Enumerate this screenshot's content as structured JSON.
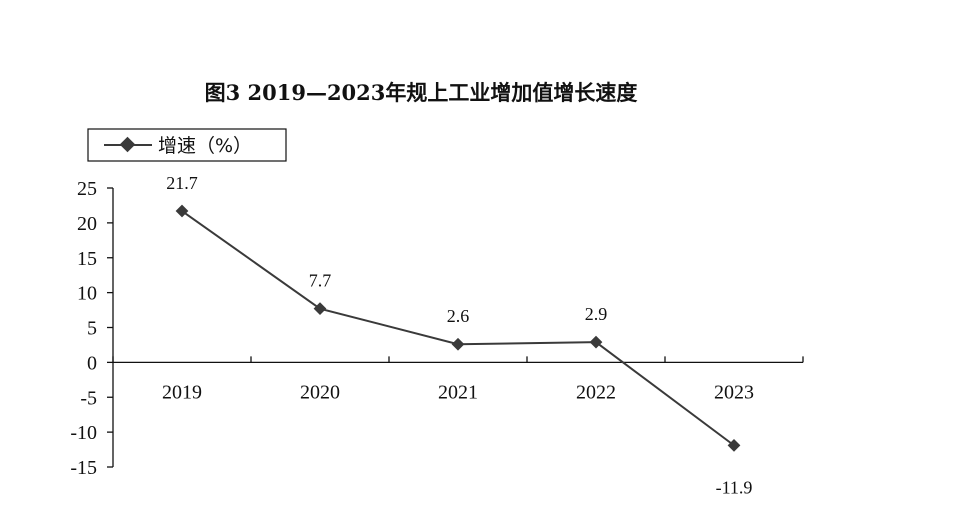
{
  "chart_data": {
    "type": "line",
    "title": "图3   2019—2023年规上工业增加值增长速度",
    "categories": [
      "2019",
      "2020",
      "2021",
      "2022",
      "2023"
    ],
    "series": [
      {
        "name": "增速（%）",
        "values": [
          21.7,
          7.7,
          2.6,
          2.9,
          -11.9
        ],
        "color": "#3a3a3a",
        "marker": "diamond"
      }
    ],
    "data_labels": [
      "21.7",
      "7.7",
      "2.6",
      "2.9",
      "-11.9"
    ],
    "y_ticks": [
      25,
      20,
      15,
      10,
      5,
      0,
      -5,
      -10,
      -15
    ],
    "y_tick_labels": [
      "25",
      "20",
      "15",
      "10",
      "5",
      "0",
      "-5",
      "-10",
      "-15"
    ],
    "ylim": [
      -15,
      25
    ],
    "xlabel": "",
    "ylabel": "",
    "grid": false,
    "legend_position": "top-left"
  }
}
